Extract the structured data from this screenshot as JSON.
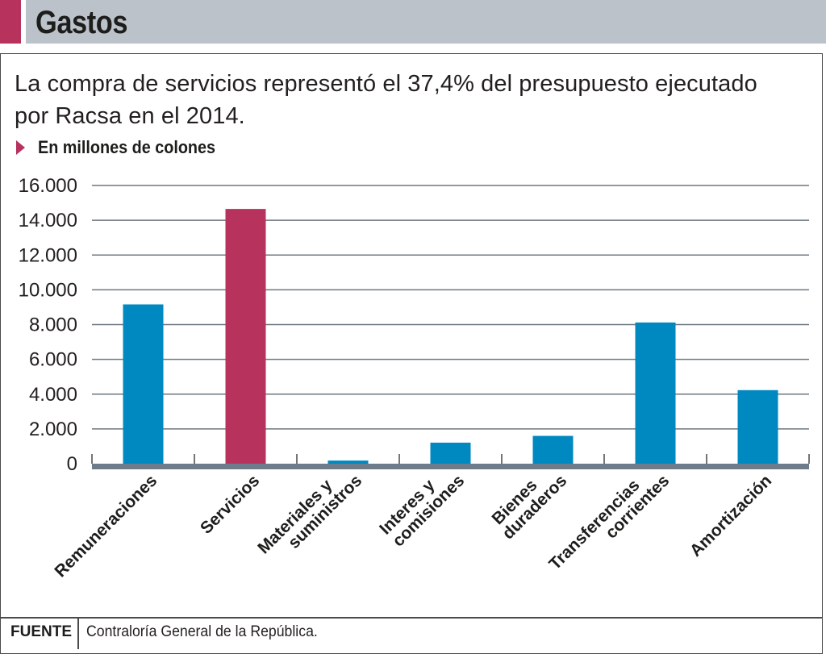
{
  "header": {
    "title": "Gastos"
  },
  "subtitle": {
    "line1": "La compra de servicios representó el 37,4% del presupuesto ejecutado",
    "line2": "por Racsa en el 2014."
  },
  "unit_label": "En millones de colones",
  "footer": {
    "source_label": "FUENTE",
    "source_text": "Contraloría General de la República."
  },
  "colors": {
    "accent": "#b8325e",
    "bar_default": "#0088c0",
    "bar_highlight": "#b8325e",
    "header_band": "#bcc2ca",
    "gridline": "#6d7780",
    "axis": "#6d7b8a"
  },
  "chart_data": {
    "type": "bar",
    "title": "Gastos",
    "subtitle": "La compra de servicios representó el 37,4% del presupuesto ejecutado por Racsa en el 2014.",
    "ylabel": "En millones de colones",
    "xlabel": "",
    "ylim": [
      0,
      16000
    ],
    "yticks": [
      0,
      2000,
      4000,
      6000,
      8000,
      10000,
      12000,
      14000,
      16000
    ],
    "ytick_labels": [
      "0",
      "2.000",
      "4.000",
      "6.000",
      "8.000",
      "10.000",
      "12.000",
      "14.000",
      "16.000"
    ],
    "grid": true,
    "legend": "none",
    "categories": [
      [
        "Remuneraciones"
      ],
      [
        "Servicios"
      ],
      [
        "Materiales y",
        "suministros"
      ],
      [
        "Interes y",
        "comisiones"
      ],
      [
        "Bienes",
        "duraderos"
      ],
      [
        "Transferencias",
        "corrientes"
      ],
      [
        "Amortización"
      ]
    ],
    "values": [
      9160,
      14650,
      180,
      1210,
      1600,
      8120,
      4230
    ],
    "highlight": [
      false,
      true,
      false,
      false,
      false,
      false,
      false
    ]
  }
}
